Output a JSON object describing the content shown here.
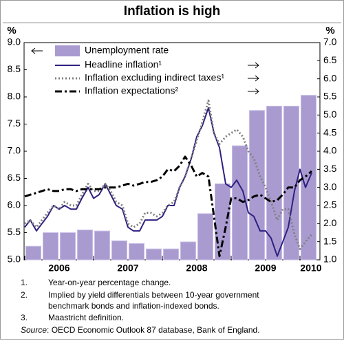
{
  "chart_data": {
    "type": "bar-line",
    "title": "Inflation is high",
    "y_unit": "%",
    "y2_unit": "%",
    "xlim": [
      2005.99,
      2010.29
    ],
    "xticks": [
      2006,
      2007,
      2008,
      2009,
      2010
    ],
    "ylim": [
      5,
      9
    ],
    "yticks": [
      {
        "value": 5,
        "label": "5.0"
      },
      {
        "value": 5.5,
        "label": "5.5"
      },
      {
        "value": 6,
        "label": "6.0"
      },
      {
        "value": 6.5,
        "label": "6.5"
      },
      {
        "value": 7,
        "label": "7.0"
      },
      {
        "value": 7.5,
        "label": "7.5"
      },
      {
        "value": 8,
        "label": "8.0"
      },
      {
        "value": 8.5,
        "label": "8.5"
      },
      {
        "value": 9,
        "label": "9.0"
      }
    ],
    "y2lim": [
      1,
      7
    ],
    "y2ticks": [
      {
        "value": 1,
        "label": "1.0"
      },
      {
        "value": 1.5,
        "label": "1.5"
      },
      {
        "value": 2,
        "label": "2.0"
      },
      {
        "value": 2.5,
        "label": "2.5"
      },
      {
        "value": 3,
        "label": "3.0"
      },
      {
        "value": 3.5,
        "label": "3.5"
      },
      {
        "value": 4,
        "label": "4.0"
      },
      {
        "value": 4.5,
        "label": "4.5"
      },
      {
        "value": 5,
        "label": "5.0"
      },
      {
        "value": 5.5,
        "label": "5.5"
      },
      {
        "value": 6,
        "label": "6.0"
      },
      {
        "value": 6.5,
        "label": "6.5"
      },
      {
        "value": 7,
        "label": "7.0"
      }
    ],
    "x": [
      2006,
      2006.08,
      2006.17,
      2006.25,
      2006.33,
      2006.42,
      2006.5,
      2006.58,
      2006.67,
      2006.75,
      2006.83,
      2006.92,
      2007,
      2007.08,
      2007.17,
      2007.25,
      2007.33,
      2007.42,
      2007.5,
      2007.58,
      2007.67,
      2007.75,
      2007.83,
      2007.92,
      2008,
      2008.08,
      2008.17,
      2008.25,
      2008.33,
      2008.42,
      2008.5,
      2008.58,
      2008.67,
      2008.75,
      2008.83,
      2008.92,
      2009,
      2009.08,
      2009.17,
      2009.25,
      2009.33,
      2009.42,
      2009.5,
      2009.58,
      2009.67,
      2009.75,
      2009.83,
      2009.92,
      2010,
      2010.08,
      2010.17
    ],
    "series": [
      {
        "name": "Unemployment rate",
        "kind": "bar",
        "axis": "y",
        "color": "#a99bd0",
        "x": [
          2006.125,
          2006.375,
          2006.625,
          2006.875,
          2007.125,
          2007.375,
          2007.625,
          2007.875,
          2008.125,
          2008.375,
          2008.625,
          2008.875,
          2009.125,
          2009.375,
          2009.625,
          2009.875,
          2010.125
        ],
        "values": [
          5.25,
          5.5,
          5.5,
          5.55,
          5.53,
          5.35,
          5.3,
          5.2,
          5.2,
          5.33,
          5.85,
          6.4,
          7.1,
          7.75,
          7.83,
          7.83,
          8.03
        ]
      },
      {
        "name": "Headline inflation¹",
        "kind": "line",
        "style": "solid",
        "axis": "y2",
        "color": "#2e2080",
        "values": [
          1.9,
          2.1,
          1.8,
          2.0,
          2.2,
          2.5,
          2.4,
          2.5,
          2.4,
          2.4,
          2.7,
          3.0,
          2.7,
          2.8,
          3.1,
          2.8,
          2.5,
          2.4,
          1.9,
          1.8,
          1.8,
          2.1,
          2.1,
          2.1,
          2.2,
          2.5,
          2.5,
          3.0,
          3.3,
          3.8,
          4.4,
          4.7,
          5.2,
          4.5,
          4.1,
          3.1,
          3.0,
          3.2,
          2.9,
          2.3,
          2.2,
          1.8,
          1.8,
          1.6,
          1.1,
          1.5,
          1.9,
          2.9,
          3.5,
          3.0,
          3.4
        ]
      },
      {
        "name": "Inflation excluding indirect taxes¹",
        "kind": "line",
        "style": "dotted",
        "axis": "y2",
        "color": "#808080",
        "values": [
          2.0,
          2.1,
          1.9,
          2.1,
          2.3,
          2.5,
          2.4,
          2.6,
          2.5,
          2.5,
          2.8,
          3.1,
          2.9,
          2.9,
          3.1,
          2.9,
          2.6,
          2.5,
          2.0,
          1.9,
          2.0,
          2.3,
          2.3,
          2.2,
          2.3,
          2.5,
          2.6,
          3.0,
          3.3,
          3.8,
          4.3,
          4.8,
          5.4,
          4.5,
          4.2,
          4.4,
          4.5,
          4.6,
          4.4,
          4.0,
          3.8,
          3.3,
          3.0,
          2.6,
          2.1,
          2.4,
          2.4,
          1.7,
          1.3,
          1.5,
          1.7
        ]
      },
      {
        "name": "Inflation expectations²",
        "kind": "line",
        "style": "dashdot",
        "axis": "y2",
        "color": "#000000",
        "values": [
          2.75,
          2.8,
          2.85,
          2.9,
          2.95,
          2.9,
          2.9,
          2.95,
          2.95,
          2.9,
          2.95,
          2.95,
          2.95,
          2.95,
          3.0,
          3.0,
          3.0,
          3.05,
          3.1,
          3.05,
          3.1,
          3.15,
          3.15,
          3.2,
          3.3,
          3.5,
          3.45,
          3.6,
          3.85,
          3.6,
          3.3,
          3.4,
          3.3,
          2.2,
          1.1,
          1.9,
          2.7,
          2.7,
          2.6,
          2.65,
          2.75,
          2.8,
          2.7,
          2.6,
          2.65,
          2.8,
          3.0,
          3.0,
          3.2,
          3.3,
          3.45
        ]
      }
    ],
    "notes": [
      {
        "number": "1.",
        "text": "Year-on-year percentage change."
      },
      {
        "number": "2.",
        "text": "Implied by yield differentials between 10-year government",
        "text2": "benchmark bonds and inflation-indexed bonds."
      },
      {
        "number": "3.",
        "text": "Maastricht definition."
      }
    ],
    "source_label": "Source",
    "source_text": ": OECD Economic Outlook 87 database, Bank of England."
  }
}
